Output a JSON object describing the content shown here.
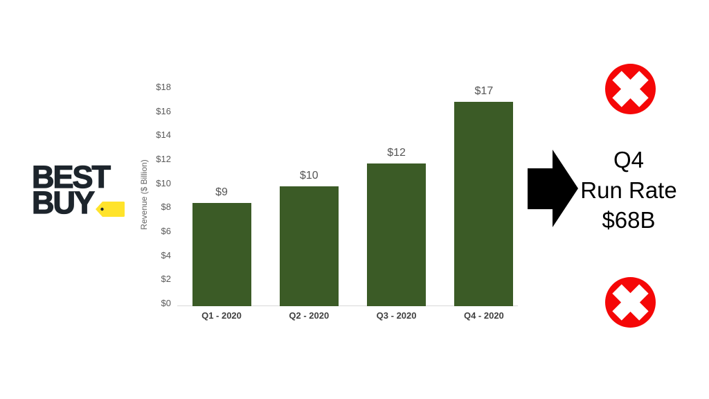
{
  "slide": {
    "background": "#ffffff"
  },
  "logo": {
    "line1": "BEST",
    "line2": "BUY",
    "text_color": "#1d252c",
    "tag_color": "#ffe32b",
    "tag_hole_color": "#1d252c"
  },
  "chart_data": {
    "type": "bar",
    "title": "",
    "categories": [
      "Q1 - 2020",
      "Q2 - 2020",
      "Q3 - 2020",
      "Q4 - 2020"
    ],
    "values": [
      8.6,
      10.0,
      11.9,
      17.0
    ],
    "bar_labels": [
      "$9",
      "$10",
      "$12",
      "$17"
    ],
    "xlabel": "",
    "ylabel": "Revenue ($ Billion)",
    "ylim": [
      0,
      18
    ],
    "ytick_values": [
      0,
      2,
      4,
      6,
      8,
      10,
      12,
      14,
      16,
      18
    ],
    "ytick_labels": [
      "$0",
      "$2",
      "$4",
      "$6",
      "$8",
      "$10",
      "$12",
      "$14",
      "$16",
      "$18"
    ],
    "grid": false,
    "legend": false,
    "bar_color": "#3b5b26",
    "axis_text_color": "#5a5a5a",
    "category_text_color": "#3f3f3f"
  },
  "annotation": {
    "lines": [
      "Q4",
      "Run Rate",
      "$68B"
    ],
    "text_color": "#000000",
    "arrow_color": "#000000"
  },
  "icons": {
    "top": "red-cross-circle",
    "bottom": "red-cross-circle",
    "circle_color": "#f50707",
    "cross_color": "#ffffff"
  }
}
